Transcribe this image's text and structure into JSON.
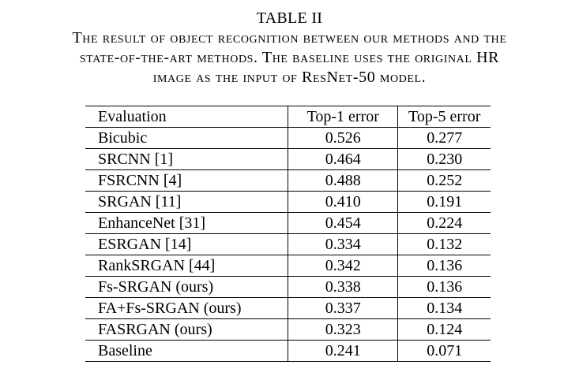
{
  "caption": {
    "table_label": "TABLE II",
    "lines": [
      "The result of object recognition between our methods and the",
      "state-of-the-art methods. The baseline uses the original HR",
      "image as the input of ResNet-50 model."
    ]
  },
  "table": {
    "headers": [
      "Evaluation",
      "Top-1 error",
      "Top-5 error"
    ],
    "rows": [
      {
        "method": "Bicubic",
        "top1": "0.526",
        "top5": "0.277"
      },
      {
        "method": "SRCNN [1]",
        "top1": "0.464",
        "top5": "0.230"
      },
      {
        "method": "FSRCNN [4]",
        "top1": "0.488",
        "top5": "0.252"
      },
      {
        "method": "SRGAN [11]",
        "top1": "0.410",
        "top5": "0.191"
      },
      {
        "method": "EnhanceNet [31]",
        "top1": "0.454",
        "top5": "0.224"
      },
      {
        "method": "ESRGAN [14]",
        "top1": "0.334",
        "top5": "0.132"
      },
      {
        "method": "RankSRGAN [44]",
        "top1": "0.342",
        "top5": "0.136"
      },
      {
        "method": "Fs-SRGAN (ours)",
        "top1": "0.338",
        "top5": "0.136"
      },
      {
        "method": "FA+Fs-SRGAN (ours)",
        "top1": "0.337",
        "top5": "0.134"
      },
      {
        "method": "FASRGAN (ours)",
        "top1": "0.323",
        "top5": "0.124"
      },
      {
        "method": "Baseline",
        "top1": "0.241",
        "top5": "0.071"
      }
    ]
  }
}
